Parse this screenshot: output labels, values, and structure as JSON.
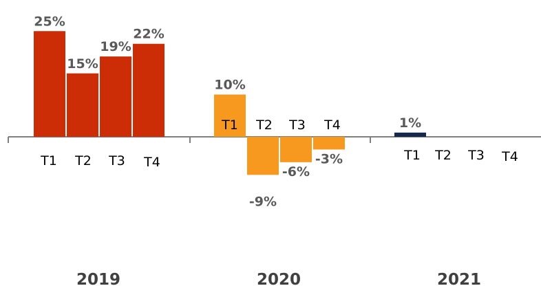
{
  "chart_data": {
    "type": "bar",
    "groups": [
      {
        "year": "2019",
        "color": "#cc2d06",
        "quarters": [
          "T1",
          "T2",
          "T3",
          "T4"
        ],
        "values": [
          25,
          15,
          19,
          22
        ],
        "labels": [
          "25%",
          "15%",
          "19%",
          "22%"
        ]
      },
      {
        "year": "2020",
        "color": "#f7981f",
        "quarters": [
          "T1",
          "T2",
          "T3",
          "T4"
        ],
        "values": [
          10,
          -9,
          -6,
          -3
        ],
        "labels": [
          "10%",
          "-9%",
          "-6%",
          "-3%"
        ]
      },
      {
        "year": "2021",
        "color": "#14284b",
        "quarters": [
          "T1",
          "T2",
          "T3",
          "T4"
        ],
        "values": [
          1,
          null,
          null,
          null
        ],
        "labels": [
          "1%",
          "",
          "",
          ""
        ]
      }
    ],
    "axis_color": "#7f7f7f",
    "grid": false,
    "legend": "none"
  }
}
